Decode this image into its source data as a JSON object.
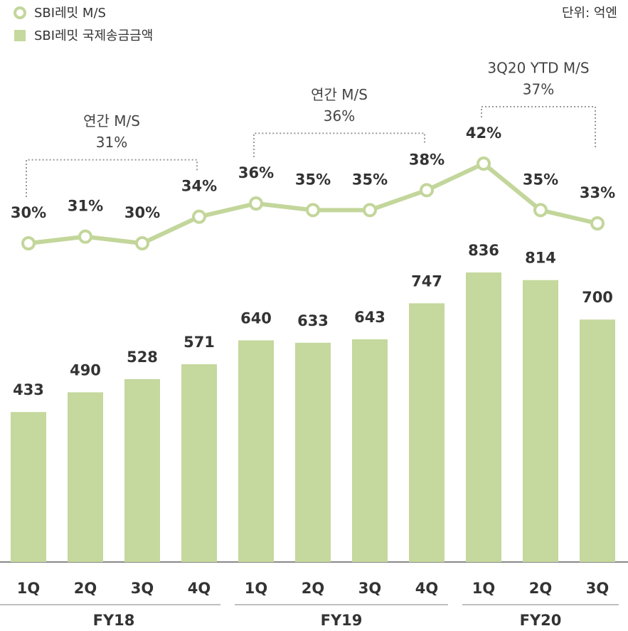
{
  "chart_data": {
    "type": "bar-line",
    "unit_note": "단위: 억엔",
    "categories": [
      "1Q",
      "2Q",
      "3Q",
      "4Q",
      "1Q",
      "2Q",
      "3Q",
      "4Q",
      "1Q",
      "2Q",
      "3Q"
    ],
    "groups": [
      {
        "name": "FY18",
        "count": 4
      },
      {
        "name": "FY19",
        "count": 4
      },
      {
        "name": "FY20",
        "count": 3
      }
    ],
    "series": [
      {
        "name": "SBI레밋 M/S",
        "type": "line",
        "color": "#c3d69b",
        "values": [
          30,
          31,
          30,
          34,
          36,
          35,
          35,
          38,
          42,
          35,
          33
        ],
        "value_labels": [
          "30%",
          "31%",
          "30%",
          "34%",
          "36%",
          "35%",
          "35%",
          "38%",
          "42%",
          "35%",
          "33%"
        ]
      },
      {
        "name": "SBI레밋 국제송금금액",
        "type": "bar",
        "color": "#c5d89d",
        "values": [
          433,
          490,
          528,
          571,
          640,
          633,
          643,
          747,
          836,
          814,
          700
        ]
      }
    ],
    "annotations": [
      {
        "text": "연간 M/S",
        "value": 31,
        "value_label": "31%",
        "from": 0,
        "to": 3
      },
      {
        "text": "연간 M/S",
        "value": 36,
        "value_label": "36%",
        "from": 4,
        "to": 7
      },
      {
        "text": "3Q20 YTD M/S",
        "value": 37,
        "value_label": "37%",
        "from": 8,
        "to": 10
      }
    ]
  }
}
